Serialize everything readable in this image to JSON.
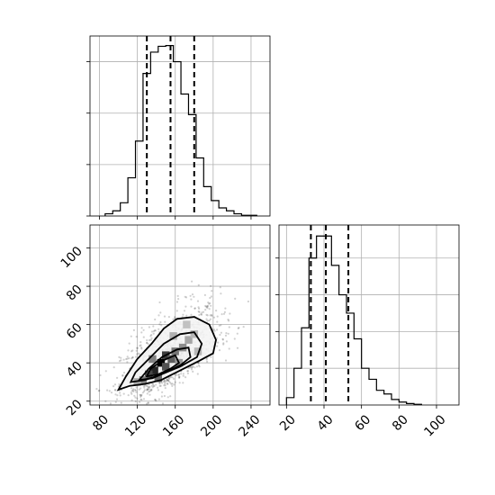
{
  "chart_data": [
    {
      "type": "histogram",
      "panel": "top-left",
      "xlim": [
        70,
        260
      ],
      "ylim": [
        0,
        0.0245
      ],
      "bins": [
        86,
        94,
        102,
        110,
        118,
        126,
        134,
        142,
        150,
        158,
        166,
        174,
        182,
        190,
        198,
        206,
        214,
        222,
        230,
        238,
        246
      ],
      "values": [
        0.0003,
        0.0007,
        0.0018,
        0.0052,
        0.0102,
        0.0194,
        0.0223,
        0.0231,
        0.0232,
        0.021,
        0.0166,
        0.0138,
        0.0079,
        0.004,
        0.0021,
        0.0011,
        0.0007,
        0.0003,
        0.0001,
        0.0001
      ],
      "quantiles": [
        130,
        155,
        180
      ],
      "xticks": [
        80,
        120,
        160,
        200,
        240
      ],
      "yticks": [
        0.0,
        0.007,
        0.014,
        0.021
      ]
    },
    {
      "type": "heatmap",
      "panel": "bottom-left",
      "xlim": [
        70,
        260
      ],
      "ylim": [
        18,
        112
      ],
      "xticks": [
        80,
        120,
        160,
        200,
        240
      ],
      "yticks": [
        20,
        40,
        60,
        80,
        100
      ],
      "xtick_labels": [
        "80",
        "120",
        "160",
        "200",
        "240"
      ],
      "ytick_labels": [
        "20",
        "40",
        "60",
        "80",
        "100"
      ],
      "density_cells": [
        {
          "x": 145,
          "y": 40,
          "v": 1.0
        },
        {
          "x": 138,
          "y": 36,
          "v": 0.85
        },
        {
          "x": 132,
          "y": 34,
          "v": 0.7
        },
        {
          "x": 150,
          "y": 44,
          "v": 0.75
        },
        {
          "x": 156,
          "y": 42,
          "v": 0.6
        },
        {
          "x": 160,
          "y": 46,
          "v": 0.5
        },
        {
          "x": 142,
          "y": 32,
          "v": 0.55
        },
        {
          "x": 126,
          "y": 31,
          "v": 0.45
        },
        {
          "x": 168,
          "y": 48,
          "v": 0.4
        },
        {
          "x": 174,
          "y": 52,
          "v": 0.3
        },
        {
          "x": 150,
          "y": 38,
          "v": 0.65
        },
        {
          "x": 164,
          "y": 40,
          "v": 0.35
        },
        {
          "x": 136,
          "y": 42,
          "v": 0.45
        },
        {
          "x": 180,
          "y": 55,
          "v": 0.22
        },
        {
          "x": 120,
          "y": 30,
          "v": 0.28
        },
        {
          "x": 184,
          "y": 46,
          "v": 0.22
        },
        {
          "x": 172,
          "y": 60,
          "v": 0.18
        },
        {
          "x": 158,
          "y": 54,
          "v": 0.25
        }
      ],
      "contours": [
        [
          [
            100,
            26
          ],
          [
            112,
            28
          ],
          [
            128,
            29
          ],
          [
            145,
            31
          ],
          [
            165,
            36
          ],
          [
            185,
            41
          ],
          [
            200,
            45
          ],
          [
            203,
            52
          ],
          [
            196,
            60
          ],
          [
            180,
            64
          ],
          [
            162,
            63
          ],
          [
            148,
            58
          ],
          [
            135,
            50
          ],
          [
            120,
            42
          ],
          [
            108,
            33
          ],
          [
            100,
            26
          ]
        ],
        [
          [
            113,
            30
          ],
          [
            128,
            31
          ],
          [
            145,
            34
          ],
          [
            165,
            38
          ],
          [
            183,
            43
          ],
          [
            188,
            50
          ],
          [
            180,
            56
          ],
          [
            165,
            55
          ],
          [
            148,
            50
          ],
          [
            132,
            42
          ],
          [
            118,
            35
          ],
          [
            113,
            30
          ]
        ],
        [
          [
            122,
            31
          ],
          [
            136,
            32
          ],
          [
            150,
            35
          ],
          [
            166,
            39
          ],
          [
            176,
            43
          ],
          [
            174,
            48
          ],
          [
            162,
            47
          ],
          [
            146,
            43
          ],
          [
            132,
            37
          ],
          [
            122,
            31
          ]
        ],
        [
          [
            130,
            33
          ],
          [
            142,
            34
          ],
          [
            155,
            37
          ],
          [
            164,
            40
          ],
          [
            160,
            44
          ],
          [
            146,
            41
          ],
          [
            134,
            37
          ],
          [
            130,
            33
          ]
        ]
      ]
    },
    {
      "type": "histogram",
      "panel": "bottom-right",
      "xlim": [
        16,
        112
      ],
      "ylim": [
        0,
        0.049
      ],
      "bins": [
        20,
        24,
        28,
        32,
        36,
        40,
        44,
        48,
        52,
        56,
        60,
        64,
        68,
        72,
        76,
        80,
        84,
        88,
        92
      ],
      "values": [
        0.002,
        0.01,
        0.021,
        0.04,
        0.046,
        0.046,
        0.038,
        0.03,
        0.025,
        0.018,
        0.01,
        0.007,
        0.004,
        0.003,
        0.0015,
        0.0008,
        0.0004,
        0.0002
      ],
      "quantiles": [
        33,
        41,
        53
      ],
      "xticks": [
        20,
        40,
        60,
        80,
        100
      ],
      "xtick_labels": [
        "20",
        "40",
        "60",
        "80",
        "100"
      ],
      "yticks": [
        0.01,
        0.02,
        0.03,
        0.04
      ]
    }
  ]
}
